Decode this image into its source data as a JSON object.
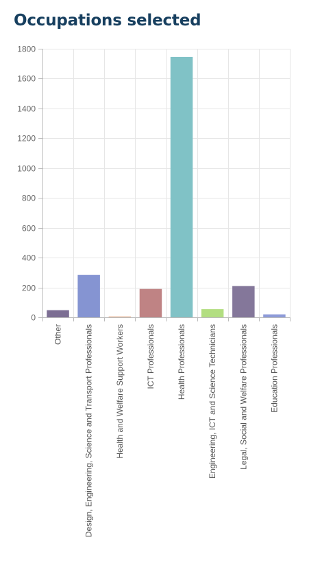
{
  "page": {
    "title": "Occupations selected"
  },
  "chart_data": {
    "type": "bar",
    "title": "",
    "xlabel": "",
    "ylabel": "",
    "categories": [
      "Other",
      "Design, Engineering, Science and Transport Professionals",
      "Health and Welfare Support Workers",
      "ICT Professionals",
      "Health Professionals",
      "Engineering, ICT and Science Technicians",
      "Legal, Social and Welfare Professionals",
      "Education Professionals"
    ],
    "values": [
      48,
      285,
      6,
      190,
      1745,
      55,
      210,
      20
    ],
    "colors": [
      "#7c6e93",
      "#8594d2",
      "#e8b89b",
      "#bf8384",
      "#80c2c6",
      "#b2de81",
      "#84779a",
      "#8e9bd8"
    ],
    "ylim": [
      0,
      1800
    ],
    "yticks": [
      0,
      200,
      400,
      600,
      800,
      1000,
      1200,
      1400,
      1600,
      1800
    ],
    "grid": true,
    "legend": "none"
  }
}
